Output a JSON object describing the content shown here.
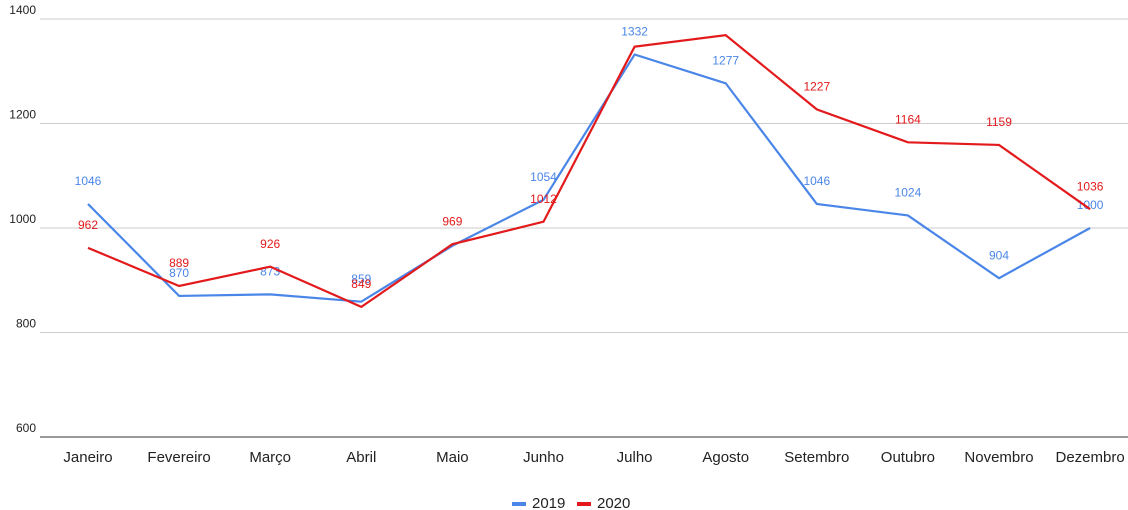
{
  "chart_data": {
    "type": "line",
    "categories": [
      "Janeiro",
      "Fevereiro",
      "Março",
      "Abril",
      "Maio",
      "Junho",
      "Julho",
      "Agosto",
      "Setembro",
      "Outubro",
      "Novembro",
      "Dezembro"
    ],
    "series": [
      {
        "name": "2019",
        "color": "#4a86e8",
        "values": [
          1046,
          870,
          873,
          859,
          966,
          1054,
          1332,
          1277,
          1046,
          1024,
          904,
          1000
        ],
        "value_labels": [
          "1046",
          "870",
          "873",
          "859",
          null,
          "1054",
          "1332",
          "1277",
          "1046",
          "1024",
          "904",
          "1000"
        ]
      },
      {
        "name": "2020",
        "color": "#e31a1c",
        "values": [
          962,
          889,
          926,
          849,
          969,
          1012,
          1347,
          1369,
          1227,
          1164,
          1159,
          1036
        ],
        "value_labels": [
          "962",
          "889",
          "926",
          "849",
          "969",
          "1012",
          null,
          null,
          "1227",
          "1164",
          "1159",
          "1036"
        ]
      }
    ],
    "ylim": [
      600,
      1400
    ],
    "yticks": [
      600,
      800,
      1000,
      1200,
      1400
    ],
    "grid": true,
    "legend": "bottom"
  }
}
